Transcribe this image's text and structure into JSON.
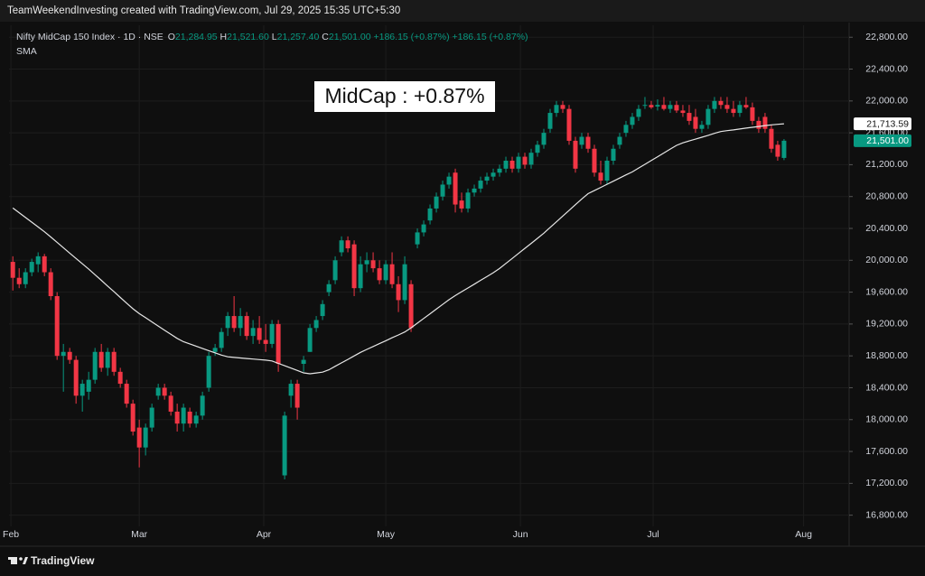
{
  "header": "TeamWeekendInvesting created with TradingView.com, Jul 29, 2025 15:35 UTC+5:30",
  "footer": "TradingView",
  "chart_data": {
    "type": "candlestick",
    "legend": {
      "symbol": "Nifty MidCap 150 Index · 1D · NSE",
      "fields": [
        {
          "key": "O",
          "value": "21,284.95"
        },
        {
          "key": "H",
          "value": "21,521.60"
        },
        {
          "key": "L",
          "value": "21,257.40"
        },
        {
          "key": "C",
          "value": "21,501.00"
        }
      ],
      "changes": [
        "+186.15 (+0.87%)",
        "+186.15 (+0.87%)"
      ],
      "indicator": "SMA"
    },
    "annotation": "MidCap : +0.87%",
    "up_color": "#089981",
    "down_color": "#f23645",
    "sma_color": "#e6e6e6",
    "grid": true,
    "xlim": [
      -0.6,
      132.3
    ],
    "xticks": [
      {
        "value": -0.3,
        "label": "Feb"
      },
      {
        "value": 20,
        "label": "Mar"
      },
      {
        "value": 39.7,
        "label": "Apr"
      },
      {
        "value": 59,
        "label": "May"
      },
      {
        "value": 80.3,
        "label": "Jun"
      },
      {
        "value": 101.3,
        "label": "Jul"
      },
      {
        "value": 125.1,
        "label": "Aug"
      }
    ],
    "ylim": [
      16660,
      22950
    ],
    "yticks": [
      {
        "value": 16800,
        "label": "16,800.00"
      },
      {
        "value": 17200,
        "label": "17,200.00"
      },
      {
        "value": 17600,
        "label": "17,600.00"
      },
      {
        "value": 18000,
        "label": "18,000.00"
      },
      {
        "value": 18400,
        "label": "18,400.00"
      },
      {
        "value": 18800,
        "label": "18,800.00"
      },
      {
        "value": 19200,
        "label": "19,200.00"
      },
      {
        "value": 19600,
        "label": "19,600.00"
      },
      {
        "value": 20000,
        "label": "20,000.00"
      },
      {
        "value": 20400,
        "label": "20,400.00"
      },
      {
        "value": 20800,
        "label": "20,800.00"
      },
      {
        "value": 21200,
        "label": "21,200.00"
      },
      {
        "value": 21600,
        "label": "21,600.00"
      },
      {
        "value": 22000,
        "label": "22,000.00"
      },
      {
        "value": 22400,
        "label": "22,400.00"
      },
      {
        "value": 22800,
        "label": "22,800.00"
      }
    ],
    "price_badges": [
      {
        "value": 21713.59,
        "label": "21,713.59",
        "style": "sma"
      },
      {
        "value": 21501,
        "label": "21,501.00",
        "style": "last"
      }
    ],
    "candles": [
      [
        19980,
        20050,
        19620,
        19780
      ],
      [
        19780,
        19900,
        19650,
        19700
      ],
      [
        19700,
        19900,
        19650,
        19850
      ],
      [
        19850,
        20020,
        19800,
        19980
      ],
      [
        19950,
        20100,
        19850,
        20050
      ],
      [
        20050,
        20080,
        19800,
        19850
      ],
      [
        19850,
        19900,
        19500,
        19550
      ],
      [
        19550,
        19600,
        18750,
        18800
      ],
      [
        18800,
        18950,
        18350,
        18850
      ],
      [
        18850,
        18900,
        18700,
        18750
      ],
      [
        18750,
        18800,
        18200,
        18300
      ],
      [
        18300,
        18500,
        18100,
        18450
      ],
      [
        18350,
        18600,
        18250,
        18500
      ],
      [
        18500,
        18900,
        18450,
        18850
      ],
      [
        18850,
        18950,
        18600,
        18650
      ],
      [
        18650,
        18900,
        18550,
        18850
      ],
      [
        18850,
        18900,
        18550,
        18600
      ],
      [
        18600,
        18650,
        18400,
        18450
      ],
      [
        18450,
        18500,
        18150,
        18200
      ],
      [
        18200,
        18250,
        17800,
        17850
      ],
      [
        17900,
        18000,
        17400,
        17650
      ],
      [
        17650,
        17950,
        17550,
        17900
      ],
      [
        17900,
        18200,
        17850,
        18150
      ],
      [
        18300,
        18450,
        18250,
        18400
      ],
      [
        18400,
        18450,
        18250,
        18300
      ],
      [
        18300,
        18350,
        18050,
        18100
      ],
      [
        18100,
        18200,
        17850,
        17950
      ],
      [
        17950,
        18200,
        17850,
        18150
      ],
      [
        18100,
        18150,
        17900,
        17950
      ],
      [
        17950,
        18100,
        17900,
        18050
      ],
      [
        18050,
        18350,
        18000,
        18300
      ],
      [
        18400,
        18850,
        18350,
        18800
      ],
      [
        18850,
        18950,
        18800,
        18900
      ],
      [
        18900,
        19150,
        18850,
        19100
      ],
      [
        19150,
        19350,
        19050,
        19300
      ],
      [
        19300,
        19550,
        19100,
        19150
      ],
      [
        19150,
        19400,
        19050,
        19300
      ],
      [
        19300,
        19350,
        19000,
        19050
      ],
      [
        19050,
        19250,
        18950,
        19150
      ],
      [
        19150,
        19300,
        18950,
        19000
      ],
      [
        19000,
        19200,
        18850,
        18950
      ],
      [
        18950,
        19250,
        18900,
        19200
      ],
      [
        19200,
        19250,
        18600,
        18700
      ],
      [
        17300,
        18100,
        17250,
        18050
      ],
      [
        18300,
        18500,
        18150,
        18450
      ],
      [
        18450,
        18500,
        18000,
        18150
      ],
      [
        18700,
        18800,
        18600,
        18750
      ],
      [
        18850,
        19200,
        18850,
        19150
      ],
      [
        19150,
        19300,
        19100,
        19250
      ],
      [
        19300,
        19500,
        19250,
        19450
      ],
      [
        19600,
        19750,
        19550,
        19700
      ],
      [
        19750,
        20050,
        19700,
        20000
      ],
      [
        20100,
        20300,
        20050,
        20250
      ],
      [
        20250,
        20300,
        20100,
        20150
      ],
      [
        20200,
        20250,
        19550,
        19650
      ],
      [
        19650,
        20050,
        19600,
        19950
      ],
      [
        19950,
        20100,
        19850,
        20000
      ],
      [
        20000,
        20100,
        19850,
        19900
      ],
      [
        19900,
        20000,
        19700,
        19750
      ],
      [
        19750,
        20000,
        19700,
        19950
      ],
      [
        19950,
        20100,
        19650,
        19700
      ],
      [
        19700,
        19800,
        19350,
        19500
      ],
      [
        19500,
        20050,
        19450,
        19950
      ],
      [
        19700,
        19750,
        19100,
        19150
      ],
      [
        20200,
        20400,
        20150,
        20350
      ],
      [
        20350,
        20500,
        20300,
        20450
      ],
      [
        20500,
        20700,
        20450,
        20650
      ],
      [
        20650,
        20850,
        20600,
        20800
      ],
      [
        20800,
        21000,
        20750,
        20950
      ],
      [
        20950,
        21100,
        20900,
        21050
      ],
      [
        21100,
        21150,
        20600,
        20700
      ],
      [
        20750,
        20850,
        20600,
        20650
      ],
      [
        20650,
        20900,
        20600,
        20850
      ],
      [
        20850,
        20950,
        20800,
        20900
      ],
      [
        20900,
        21050,
        20850,
        21000
      ],
      [
        21000,
        21100,
        20950,
        21050
      ],
      [
        21050,
        21150,
        21000,
        21100
      ],
      [
        21100,
        21200,
        21050,
        21150
      ],
      [
        21150,
        21300,
        21100,
        21250
      ],
      [
        21250,
        21300,
        21100,
        21150
      ],
      [
        21150,
        21350,
        21100,
        21300
      ],
      [
        21300,
        21350,
        21150,
        21200
      ],
      [
        21200,
        21400,
        21150,
        21350
      ],
      [
        21350,
        21500,
        21300,
        21450
      ],
      [
        21450,
        21650,
        21400,
        21600
      ],
      [
        21650,
        21900,
        21600,
        21850
      ],
      [
        21850,
        22000,
        21800,
        21950
      ],
      [
        21950,
        22000,
        21850,
        21900
      ],
      [
        21900,
        21950,
        21450,
        21500
      ],
      [
        21500,
        21550,
        21100,
        21150
      ],
      [
        21450,
        21600,
        21400,
        21550
      ],
      [
        21550,
        21600,
        21350,
        21400
      ],
      [
        21400,
        21450,
        21050,
        21100
      ],
      [
        21100,
        21250,
        20950,
        21000
      ],
      [
        21000,
        21300,
        20950,
        21250
      ],
      [
        21250,
        21450,
        21200,
        21400
      ],
      [
        21450,
        21600,
        21400,
        21550
      ],
      [
        21600,
        21750,
        21550,
        21700
      ],
      [
        21700,
        21850,
        21650,
        21800
      ],
      [
        21800,
        21950,
        21750,
        21900
      ],
      [
        21950,
        22050,
        21900,
        21950
      ],
      [
        21950,
        22000,
        21900,
        21920
      ],
      [
        21930,
        22020,
        21880,
        21950
      ],
      [
        21950,
        22050,
        21880,
        21900
      ],
      [
        21900,
        22000,
        21850,
        21950
      ],
      [
        21950,
        22000,
        21850,
        21880
      ],
      [
        21880,
        21950,
        21800,
        21850
      ],
      [
        21850,
        21950,
        21700,
        21750
      ],
      [
        21800,
        21900,
        21600,
        21650
      ],
      [
        21650,
        21750,
        21600,
        21700
      ],
      [
        21700,
        21950,
        21650,
        21900
      ],
      [
        21900,
        22050,
        21850,
        22000
      ],
      [
        22000,
        22050,
        21900,
        21950
      ],
      [
        21950,
        22050,
        21850,
        21900
      ],
      [
        21900,
        22000,
        21800,
        21850
      ],
      [
        21850,
        22000,
        21800,
        21950
      ],
      [
        21950,
        22050,
        21900,
        21920
      ],
      [
        21920,
        21980,
        21700,
        21750
      ],
      [
        21750,
        21800,
        21600,
        21650
      ],
      [
        21800,
        21850,
        21600,
        21650
      ],
      [
        21650,
        21700,
        21350,
        21400
      ],
      [
        21450,
        21500,
        21250,
        21300
      ],
      [
        21284.95,
        21521.6,
        21257.4,
        21501
      ]
    ],
    "sma": [
      20656,
      20597,
      20537,
      20478,
      20418,
      20358,
      20292,
      20225,
      20158,
      20090,
      20023,
      19956,
      19889,
      19819,
      19748,
      19676,
      19605,
      19533,
      19462,
      19391,
      19330,
      19279,
      19227,
      19175,
      19123,
      19072,
      19020,
      18978,
      18950,
      18922,
      18894,
      18866,
      18838,
      18810,
      18788,
      18781,
      18774,
      18767,
      18760,
      18753,
      18746,
      18736,
      18706,
      18676,
      18647,
      18617,
      18587,
      18575,
      18585,
      18596,
      18625,
      18669,
      18713,
      18756,
      18800,
      18844,
      18881,
      18918,
      18954,
      18990,
      19027,
      19063,
      19100,
      19152,
      19211,
      19270,
      19328,
      19387,
      19446,
      19505,
      19557,
      19605,
      19652,
      19700,
      19748,
      19795,
      19843,
      19897,
      19960,
      20023,
      20086,
      20149,
      20212,
      20275,
      20340,
      20412,
      20483,
      20555,
      20626,
      20698,
      20769,
      20836,
      20875,
      20914,
      20954,
      20993,
      21032,
      21072,
      21110,
      21158,
      21205,
      21253,
      21300,
      21348,
      21396,
      21443,
      21474,
      21498,
      21521,
      21545,
      21569,
      21593,
      21616,
      21627,
      21637,
      21648,
      21659,
      21669,
      21680,
      21691,
      21700,
      21707,
      21713.59
    ]
  }
}
